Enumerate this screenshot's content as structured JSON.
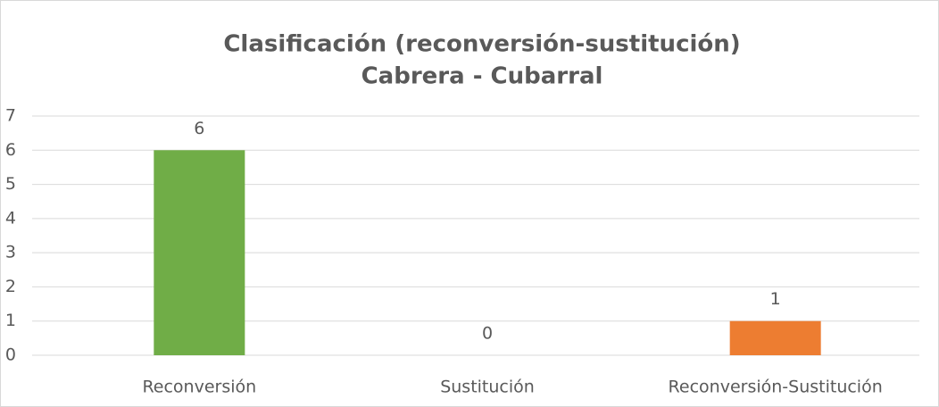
{
  "chart_data": {
    "type": "bar",
    "title": [
      "Clasificación (reconversión-sustitución)",
      "Cabrera - Cubarral"
    ],
    "categories": [
      "Reconversión",
      "Sustitución",
      "Reconversión-Sustitución"
    ],
    "values": [
      6,
      0,
      1
    ],
    "colors": [
      "#70ad47",
      "#4472c4",
      "#ed7d31"
    ],
    "ylim": [
      0,
      7
    ],
    "yticks": [
      0,
      1,
      2,
      3,
      4,
      5,
      6,
      7
    ],
    "grid": true
  }
}
